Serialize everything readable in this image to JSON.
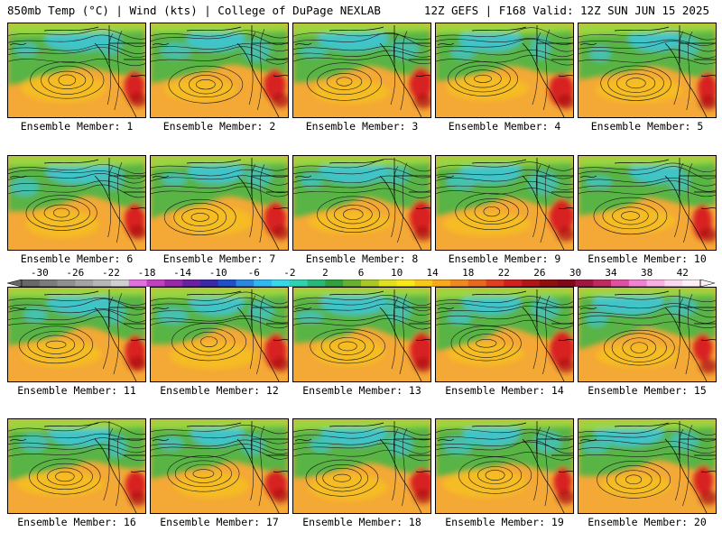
{
  "header": {
    "left_title": "850mb Temp (°C) | Wind (kts) | College of DuPage NEXLAB",
    "right_title": "12Z GEFS | F168 Valid: 12Z SUN JUN 15 2025"
  },
  "panels": [
    {
      "label": "Ensemble Member: 1"
    },
    {
      "label": "Ensemble Member: 2"
    },
    {
      "label": "Ensemble Member: 3"
    },
    {
      "label": "Ensemble Member: 4"
    },
    {
      "label": "Ensemble Member: 5"
    },
    {
      "label": "Ensemble Member: 6"
    },
    {
      "label": "Ensemble Member: 7"
    },
    {
      "label": "Ensemble Member: 8"
    },
    {
      "label": "Ensemble Member: 9"
    },
    {
      "label": "Ensemble Member: 10"
    },
    {
      "label": "Ensemble Member: 11"
    },
    {
      "label": "Ensemble Member: 12"
    },
    {
      "label": "Ensemble Member: 13"
    },
    {
      "label": "Ensemble Member: 14"
    },
    {
      "label": "Ensemble Member: 15"
    },
    {
      "label": "Ensemble Member: 16"
    },
    {
      "label": "Ensemble Member: 17"
    },
    {
      "label": "Ensemble Member: 18"
    },
    {
      "label": "Ensemble Member: 19"
    },
    {
      "label": "Ensemble Member: 20"
    }
  ],
  "colorbar": {
    "ticks": [
      "-30",
      "-26",
      "-22",
      "-18",
      "-14",
      "-10",
      "-6",
      "-2",
      "2",
      "6",
      "10",
      "14",
      "18",
      "22",
      "26",
      "30",
      "34",
      "38",
      "42"
    ],
    "min": -32,
    "max": 44,
    "step": 2,
    "colors": [
      "#686868",
      "#7c7c7c",
      "#8f8f8f",
      "#a3a3a3",
      "#b6b6b6",
      "#d0d0d0",
      "#e070e0",
      "#c040c0",
      "#9828a8",
      "#6a20a0",
      "#3a2aa8",
      "#2050c8",
      "#2a88e0",
      "#30b8f0",
      "#38d8e8",
      "#30d0b0",
      "#28b878",
      "#30a040",
      "#68b030",
      "#a8c828",
      "#e0e020",
      "#f8e818",
      "#f8c818",
      "#f8a818",
      "#f08820",
      "#e86820",
      "#e04020",
      "#d02020",
      "#b01818",
      "#901010",
      "#800818",
      "#a01840",
      "#c02860",
      "#e050a0",
      "#f080d0",
      "#f8b0e0",
      "#fcd8f0",
      "#fff0f8"
    ]
  },
  "style": {
    "ocean_warm": "#f4a836",
    "mid_green": "#58b444",
    "cold_teal": "#40c4c8",
    "hot_red": "#d82020",
    "contour": "#1a1a1a",
    "border": "#111111"
  }
}
